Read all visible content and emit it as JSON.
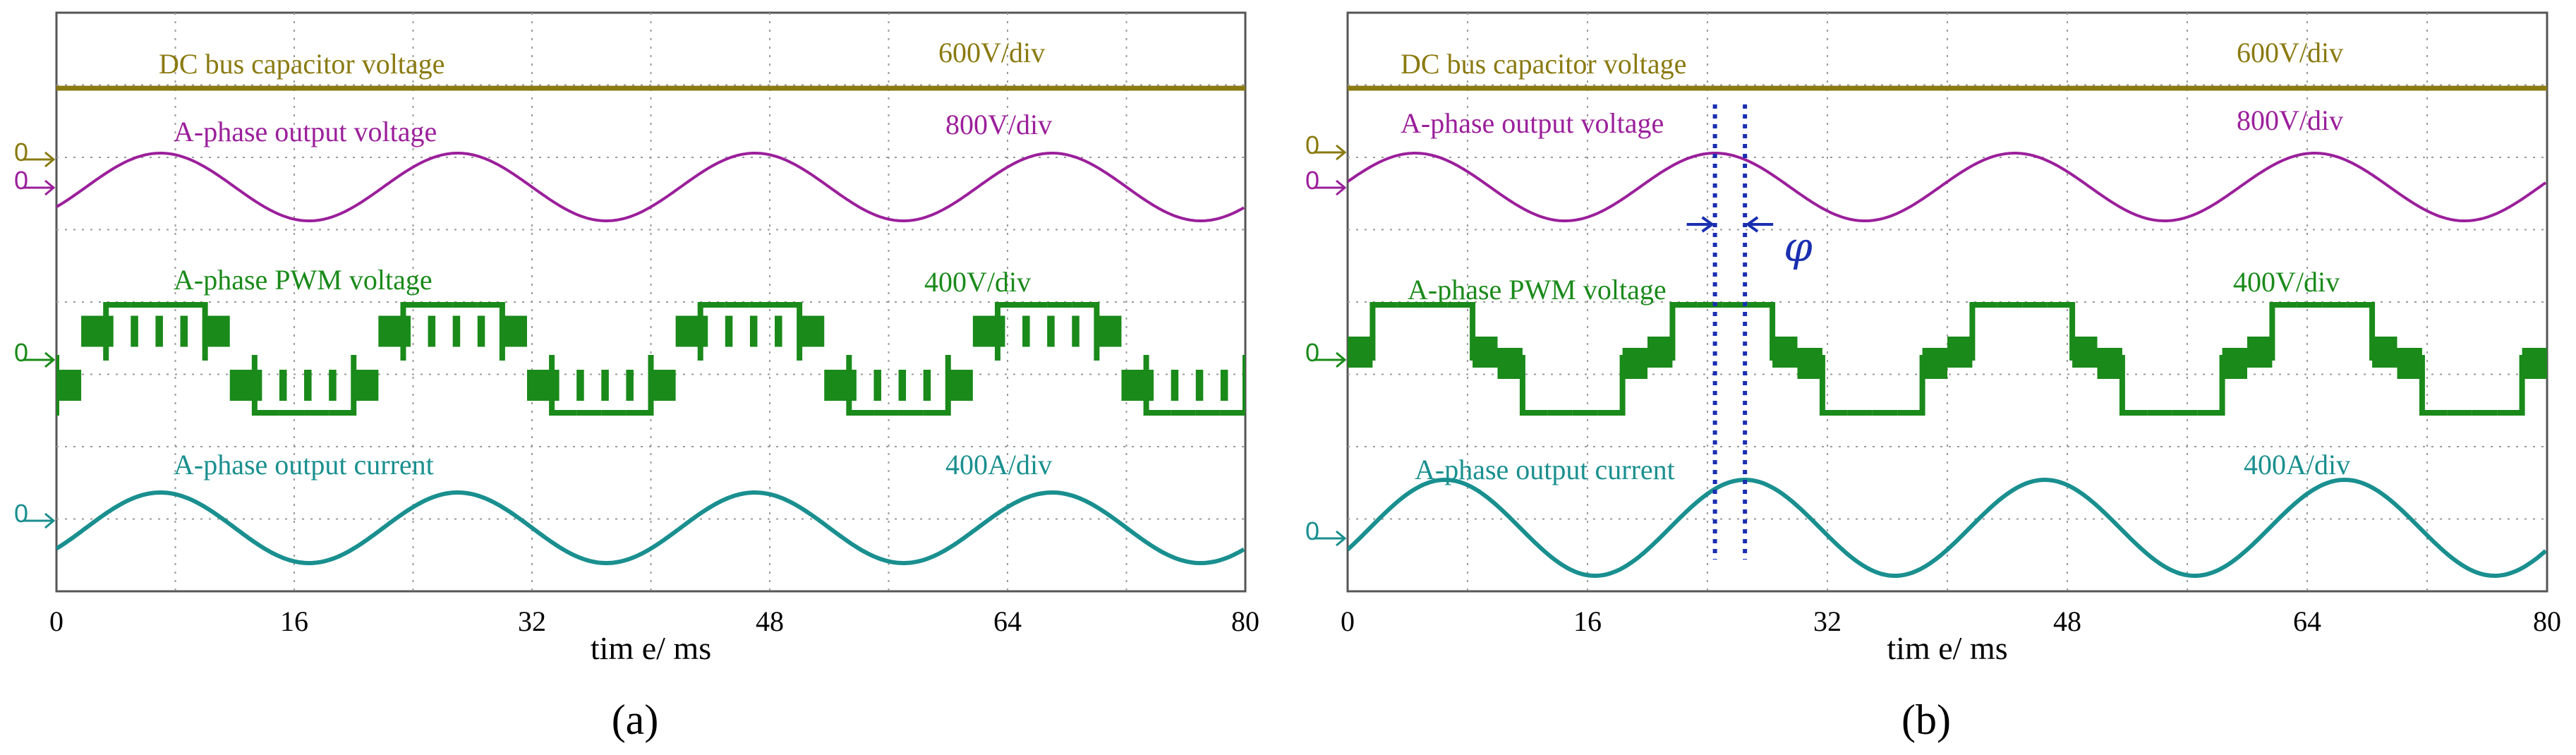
{
  "chart_data": [
    {
      "id": "a",
      "type": "line",
      "caption": "(a)",
      "xlabel": "tim e/ ms",
      "xlim": [
        0,
        80
      ],
      "xticks": [
        "0",
        "16",
        "32",
        "48",
        "64",
        "80"
      ],
      "grid": true,
      "period_ms": 20,
      "pwm_dead_gap": false,
      "series": [
        {
          "key": "dc",
          "name": "DC bus capacitor voltage",
          "scale": "600V/div",
          "color": "#8a7a10"
        },
        {
          "key": "va",
          "name": "A-phase  output voltage",
          "scale": "800V/div",
          "color": "#9b1f9b",
          "voltage_peak_ms": 7.0
        },
        {
          "key": "pwm",
          "name": "A-phase PWM voltage",
          "scale": "400V/div",
          "color": "#1a8a1a",
          "fundamental_peak_ms": 7.0
        },
        {
          "key": "ia",
          "name": "A-phase output current",
          "scale": "400A/div",
          "color": "#1a8f8f",
          "current_peak_ms": 7.0
        }
      ]
    },
    {
      "id": "b",
      "type": "line",
      "caption": "(b)",
      "xlabel": "tim e/ ms",
      "xlim": [
        0,
        80
      ],
      "xticks": [
        "0",
        "16",
        "32",
        "48",
        "64",
        "80"
      ],
      "grid": true,
      "period_ms": 20,
      "pwm_dead_gap": true,
      "phase_annotation": "φ",
      "phase_markers_ms": [
        24.5,
        26.5
      ],
      "series": [
        {
          "key": "dc",
          "name": "DC bus capacitor voltage",
          "scale": "600V/div",
          "color": "#8a7a10"
        },
        {
          "key": "va",
          "name": "A-phase  output voltage",
          "scale": "800V/div",
          "color": "#9b1f9b",
          "voltage_peak_ms": 4.5
        },
        {
          "key": "pwm",
          "name": "A-phase PWM voltage",
          "scale": "400V/div",
          "color": "#1a8a1a",
          "fundamental_peak_ms": 4.5
        },
        {
          "key": "ia",
          "name": "A-phase output current",
          "scale": "400A/div",
          "color": "#1a8f8f",
          "current_peak_ms": 6.5
        }
      ]
    }
  ],
  "zero_marker_label": "0"
}
